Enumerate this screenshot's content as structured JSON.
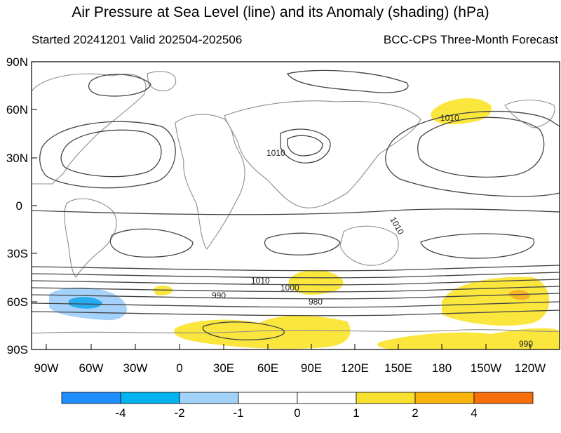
{
  "title": "Air Pressure at Sea Level (line) and its Anomaly (shading) (hPa)",
  "subtitle_left": "Started 20241201  Valid 202504-202506",
  "subtitle_right": "BCC-CPS Three-Month Forecast",
  "lat_ticks": [
    "90N",
    "60N",
    "30N",
    "0",
    "30S",
    "60S",
    "90S"
  ],
  "lon_ticks": [
    "90W",
    "60W",
    "30W",
    "0",
    "30E",
    "60E",
    "90E",
    "120E",
    "150E",
    "180",
    "150W",
    "120W"
  ],
  "contour_labels": [
    "1010",
    "1010",
    "1010",
    "1010",
    "1000",
    "990",
    "980",
    "990"
  ],
  "colorbar": {
    "labels": [
      "-4",
      "-2",
      "-1",
      "0",
      "1",
      "2",
      "4"
    ],
    "colors": [
      "#1f8fff",
      "#00b4f0",
      "#a0d2fa",
      "#ffffff",
      "#ffffff",
      "#f8e030",
      "#f8b40a",
      "#f86e0a"
    ]
  },
  "colors": {
    "pos1": "#fae63c",
    "pos2": "#f5b428",
    "neg1": "#a5d2fa",
    "neg2": "#28aaf0",
    "land": "#8c8c8c",
    "contour": "#444444"
  }
}
